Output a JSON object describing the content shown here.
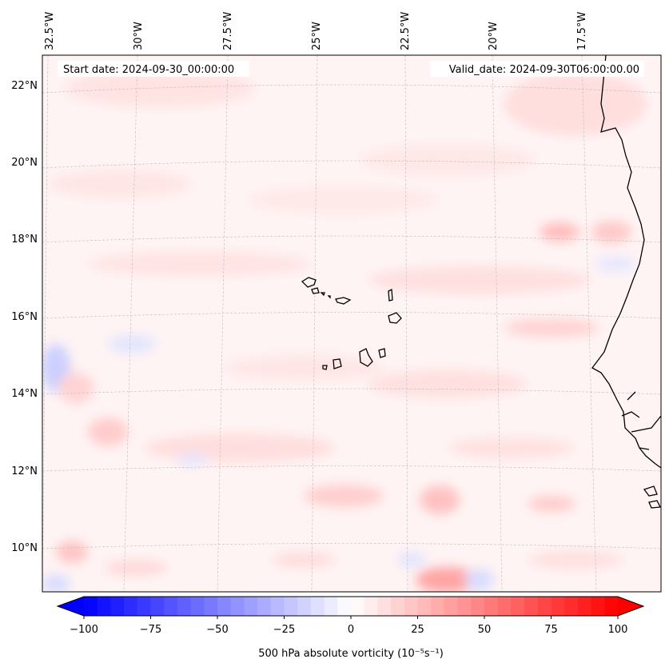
{
  "map": {
    "start_date": "Start date: 2024-09-30_00:00:00",
    "valid_date": "Valid_date: 2024-09-30T06:00:00.00",
    "longitude_labels": [
      "32.5°W",
      "30°W",
      "27.5°W",
      "25°W",
      "22.5°W",
      "20°W",
      "17.5°W"
    ],
    "latitude_labels": [
      "22°N",
      "20°N",
      "18°N",
      "16°N",
      "14°N",
      "12°N",
      "10°N"
    ]
  },
  "colorbar": {
    "label": "500 hPa absolute vorticity (10⁻⁵s⁻¹)",
    "min": -100,
    "max": 100,
    "ticks": [
      "−100",
      "−75",
      "−50",
      "−25",
      "0",
      "25",
      "50",
      "75",
      "100"
    ],
    "colormap": "bwr",
    "low_color": "#0000ff",
    "mid_color": "#ffffff",
    "high_color": "#ff0000"
  }
}
